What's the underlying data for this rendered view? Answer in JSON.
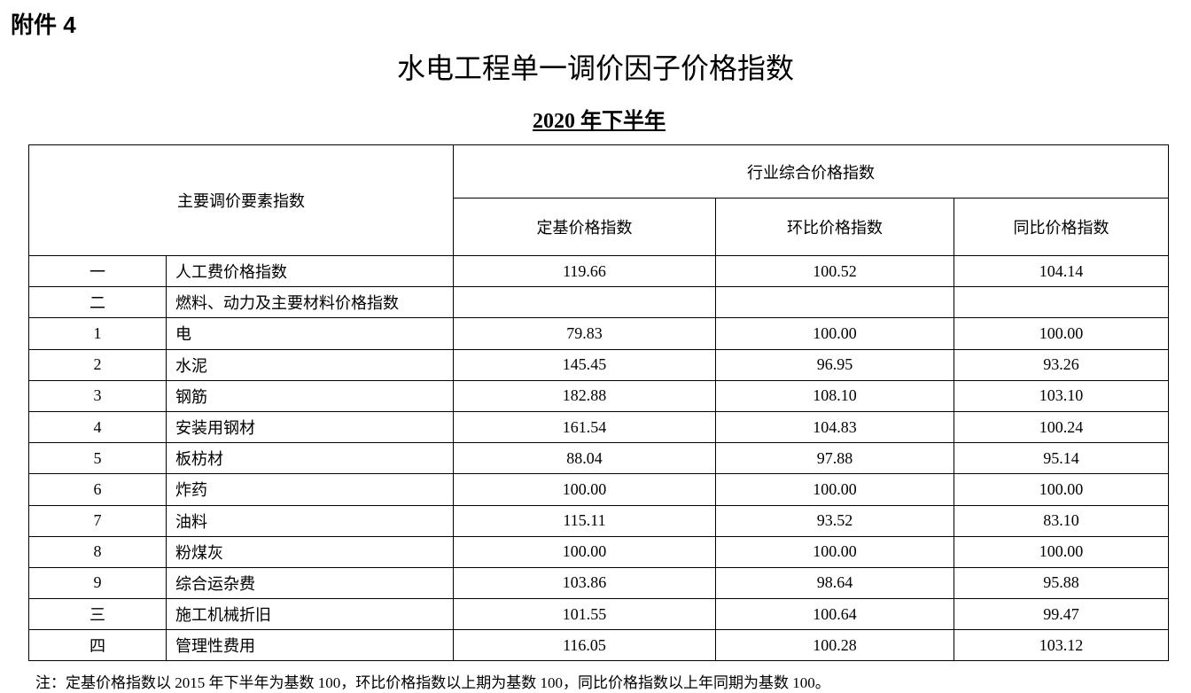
{
  "attachment_label": "附件 4",
  "title": "水电工程单一调价因子价格指数",
  "subtitle": "2020 年下半年",
  "table": {
    "header_main": "主要调价要素指数",
    "header_group": "行业综合价格指数",
    "columns": [
      "定基价格指数",
      "环比价格指数",
      "同比价格指数"
    ],
    "rows": [
      {
        "no": "一",
        "name": "人工费价格指数",
        "v": [
          "119.66",
          "100.52",
          "104.14"
        ]
      },
      {
        "no": "二",
        "name": "燃料、动力及主要材料价格指数",
        "v": [
          "",
          "",
          ""
        ]
      },
      {
        "no": "1",
        "name": "电",
        "v": [
          "79.83",
          "100.00",
          "100.00"
        ]
      },
      {
        "no": "2",
        "name": "水泥",
        "v": [
          "145.45",
          "96.95",
          "93.26"
        ]
      },
      {
        "no": "3",
        "name": "钢筋",
        "v": [
          "182.88",
          "108.10",
          "103.10"
        ]
      },
      {
        "no": "4",
        "name": "安装用钢材",
        "v": [
          "161.54",
          "104.83",
          "100.24"
        ]
      },
      {
        "no": "5",
        "name": "板枋材",
        "v": [
          "88.04",
          "97.88",
          "95.14"
        ]
      },
      {
        "no": "6",
        "name": "炸药",
        "v": [
          "100.00",
          "100.00",
          "100.00"
        ]
      },
      {
        "no": "7",
        "name": "油料",
        "v": [
          "115.11",
          "93.52",
          "83.10"
        ]
      },
      {
        "no": "8",
        "name": "粉煤灰",
        "v": [
          "100.00",
          "100.00",
          "100.00"
        ]
      },
      {
        "no": "9",
        "name": "综合运杂费",
        "v": [
          "103.86",
          "98.64",
          "95.88"
        ]
      },
      {
        "no": "三",
        "name": "施工机械折旧",
        "v": [
          "101.55",
          "100.64",
          "99.47"
        ]
      },
      {
        "no": "四",
        "name": "管理性费用",
        "v": [
          "116.05",
          "100.28",
          "103.12"
        ]
      }
    ]
  },
  "note": "注：定基价格指数以 2015 年下半年为基数 100，环比价格指数以上期为基数 100，同比价格指数以上年同期为基数 100。"
}
